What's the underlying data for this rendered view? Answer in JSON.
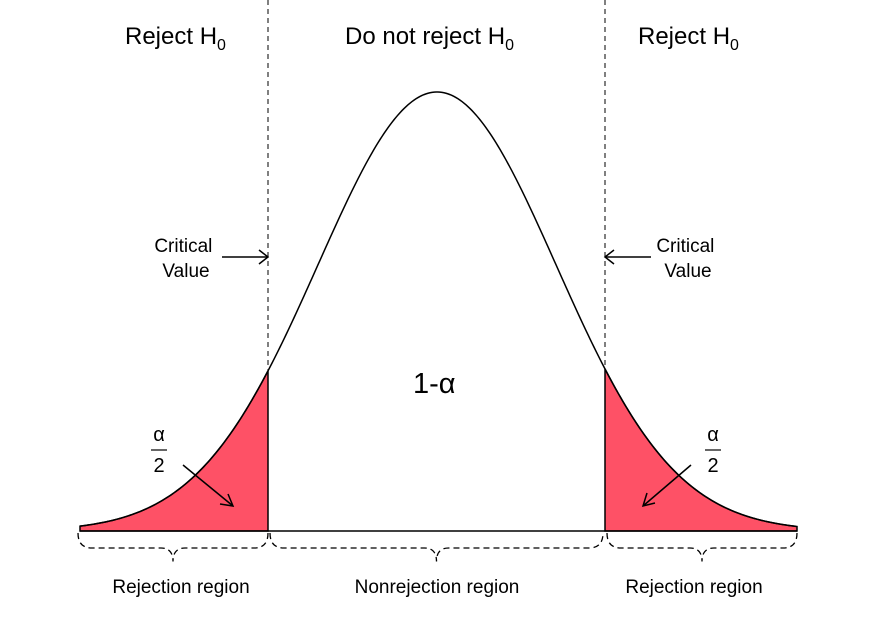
{
  "headers": {
    "left": {
      "text": "Reject H",
      "sub": "0"
    },
    "center": {
      "text": "Do not reject H",
      "sub": "0"
    },
    "right": {
      "text": "Reject H",
      "sub": "0"
    }
  },
  "critical_value": {
    "left": {
      "line1": "Critical",
      "line2": "Value"
    },
    "right": {
      "line1": "Critical",
      "line2": "Value"
    }
  },
  "center_label": {
    "prefix": "1-",
    "symbol": "α"
  },
  "tail_fraction": {
    "left": {
      "numerator": "α",
      "denominator": "2"
    },
    "right": {
      "numerator": "α",
      "denominator": "2"
    }
  },
  "regions": {
    "left": "Rejection region",
    "center": "Nonrejection region",
    "right": "Rejection region"
  },
  "colors": {
    "tail_fill": "#fe5166",
    "line": "#000000",
    "background": "#ffffff"
  }
}
